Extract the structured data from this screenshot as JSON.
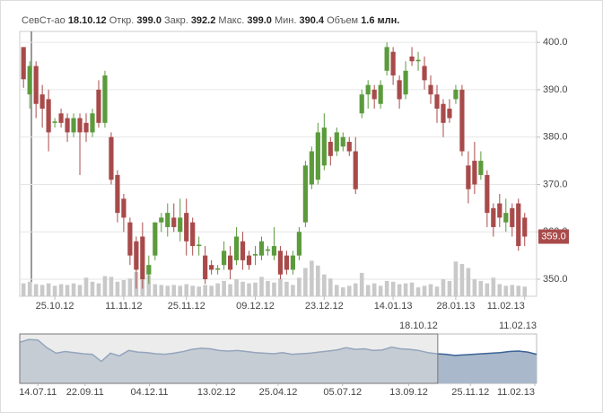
{
  "chart_data": {
    "type": "candlestick",
    "header": {
      "ticker": "СевСт-ао",
      "date": "18.10.12",
      "items": [
        {
          "label": "Откр.",
          "value": "399.0"
        },
        {
          "label": "Закр.",
          "value": "392.2"
        },
        {
          "label": "Макс.",
          "value": "399.0"
        },
        {
          "label": "Мин.",
          "value": "390.4"
        },
        {
          "label": "Объем",
          "value": "1.6 млн."
        }
      ]
    },
    "open": [
      399,
      389,
      395,
      389,
      388,
      383,
      385,
      384,
      381,
      384,
      383,
      381,
      390,
      383,
      380,
      372,
      367,
      362,
      358,
      359,
      351,
      355,
      362,
      361,
      363,
      360,
      364,
      362,
      357,
      355,
      353,
      352,
      353,
      355,
      354,
      358,
      355,
      355,
      355,
      356,
      355,
      356,
      355,
      352,
      355,
      362,
      370,
      371,
      374,
      379,
      377,
      378,
      379,
      377,
      385,
      389,
      390,
      387,
      394,
      398,
      392,
      389,
      397,
      396,
      395,
      391,
      389,
      387,
      386,
      388,
      390,
      374,
      375,
      372,
      372,
      365,
      366,
      362,
      365,
      366,
      363
    ],
    "high": [
      399,
      396,
      396,
      391,
      390,
      384,
      386,
      385,
      385,
      385,
      385,
      386,
      392,
      394,
      381,
      373,
      368,
      363,
      359,
      362,
      355,
      362,
      364,
      366,
      366,
      367,
      367,
      363,
      359,
      357,
      354,
      353,
      358,
      357,
      361,
      360,
      356,
      357,
      359,
      357,
      361,
      357,
      356,
      356,
      361,
      375,
      378,
      383,
      385,
      380,
      382,
      381,
      380,
      380,
      390,
      392,
      391,
      392,
      400,
      399,
      393,
      396,
      399,
      398,
      397,
      393,
      391,
      388,
      388,
      391,
      391,
      377,
      379,
      377,
      373,
      366,
      368,
      367,
      366,
      367,
      364
    ],
    "low": [
      390.4,
      386,
      384,
      382,
      377,
      382,
      382,
      379,
      380,
      372,
      379,
      380,
      382,
      382,
      370,
      362,
      360,
      353,
      348,
      348,
      349,
      354,
      360,
      359,
      360,
      358,
      355,
      355,
      355,
      349,
      351,
      351,
      352,
      350,
      353,
      352,
      352,
      353,
      354,
      355,
      354,
      350,
      351,
      351,
      354,
      361,
      369,
      370,
      373,
      374,
      376,
      377,
      376,
      368,
      384,
      386,
      386,
      386,
      393,
      391,
      386,
      388,
      395,
      394,
      390,
      387,
      383,
      380,
      383,
      387,
      376,
      366,
      368,
      371,
      361,
      359,
      361,
      360,
      359,
      356,
      357
    ],
    "close": [
      392.2,
      395,
      387,
      386,
      381,
      383.3,
      383,
      381,
      384,
      381,
      381,
      385,
      383,
      393,
      371,
      364,
      363,
      355,
      352,
      350,
      353,
      362,
      363,
      364,
      361,
      363,
      358,
      357,
      357.3,
      350,
      352,
      352.3,
      356,
      352,
      359,
      354,
      353,
      355.3,
      358,
      356.3,
      357,
      351,
      352,
      355,
      360,
      374,
      377,
      381,
      382,
      376,
      381,
      380,
      377,
      369,
      389,
      391,
      388,
      391,
      399,
      393,
      388,
      394,
      396,
      396.3,
      392,
      389,
      386,
      383,
      384,
      390,
      377,
      369,
      370,
      375,
      364,
      361,
      363,
      364,
      361,
      357,
      359
    ],
    "volume": [
      1.6,
      1.8,
      1.5,
      1.4,
      1.6,
      1.3,
      1.5,
      1.4,
      1.6,
      1.4,
      2.3,
      1.8,
      1.6,
      2.5,
      2.4,
      1.8,
      2.0,
      2.2,
      3.0,
      2.9,
      2.6,
      1.5,
      1.4,
      1.3,
      1.4,
      1.3,
      1.5,
      1.3,
      1.2,
      1.4,
      1.3,
      1.6,
      1.9,
      1.5,
      2.1,
      1.8,
      1.6,
      1.7,
      2.4,
      1.9,
      1.7,
      2.2,
      1.8,
      1.4,
      2.3,
      3.5,
      4.4,
      3.8,
      2.7,
      2.2,
      1.4,
      1.1,
      1.3,
      1.6,
      2.9,
      1.4,
      1.6,
      1.3,
      1.9,
      1.8,
      1.5,
      1.6,
      1.7,
      1.1,
      1.3,
      1.5,
      1.2,
      2.1,
      1.9,
      4.3,
      4.0,
      3.5,
      2.1,
      1.9,
      1.6,
      2.3,
      1.5,
      1.3,
      1.4,
      1.3,
      1.2
    ],
    "volume_lim": [
      0,
      5
    ],
    "up_color": "#5b9b3c",
    "down_color": "#a94a4a",
    "volume_color": "#c9c9c9",
    "xlim": [
      -0.6,
      81.9
    ],
    "xticks": [
      {
        "value": 5,
        "label": "25.10.12"
      },
      {
        "value": 16,
        "label": "11.11.12"
      },
      {
        "value": 26,
        "label": "25.11.12"
      },
      {
        "value": 37,
        "label": "09.12.12"
      },
      {
        "value": 48,
        "label": "23.12.12"
      },
      {
        "value": 59,
        "label": "14.01.13"
      },
      {
        "value": 69,
        "label": "28.01.13"
      },
      {
        "value": 80,
        "label": "11.02.13"
      }
    ],
    "ylim": [
      346.4,
      402.3
    ],
    "yticks": [
      {
        "value": 350,
        "label": "350.0"
      },
      {
        "value": 360,
        "label": "360.0"
      },
      {
        "value": 370,
        "label": "370.0"
      },
      {
        "value": 380,
        "label": "380.0"
      },
      {
        "value": 390,
        "label": "390.0"
      },
      {
        "value": 400,
        "label": "400.0"
      }
    ],
    "last_price": {
      "value": 359,
      "label": "359.0"
    },
    "grid": true,
    "navigator": {
      "values": [
        405,
        410,
        409,
        395,
        385,
        388,
        386,
        384,
        383,
        370,
        385,
        380,
        390,
        387,
        386,
        384,
        383,
        385,
        388,
        392,
        394,
        393,
        390,
        389,
        390,
        388,
        386,
        385,
        384,
        386,
        383,
        384,
        385,
        387,
        389,
        391,
        395,
        392,
        393,
        390,
        391,
        396,
        393,
        392,
        390,
        386,
        384,
        383,
        381,
        382,
        383,
        384,
        385,
        386,
        388,
        389,
        387,
        383
      ],
      "color": "#3d6396",
      "fill": "#a9b8ca",
      "shade": "#dcdcdc",
      "ylim": [
        330,
        420
      ],
      "xlim": [
        0,
        57
      ],
      "xticks": [
        {
          "value": 2,
          "label": "14.07.11"
        },
        {
          "value": 7.2,
          "label": "22.09.11"
        },
        {
          "value": 14.3,
          "label": "04.12.11"
        },
        {
          "value": 21.7,
          "label": "13.02.12"
        },
        {
          "value": 28.5,
          "label": "25.04.12"
        },
        {
          "value": 35.6,
          "label": "05.07.12"
        },
        {
          "value": 42.9,
          "label": "13.09.12"
        },
        {
          "value": 49.7,
          "label": "25.11.12"
        },
        {
          "value": 56.8,
          "label": "11.02.13"
        }
      ],
      "window": [
        {
          "value": 46.1,
          "label": "18.10.12"
        },
        {
          "value": 57,
          "label": "11.02.13"
        }
      ]
    }
  }
}
